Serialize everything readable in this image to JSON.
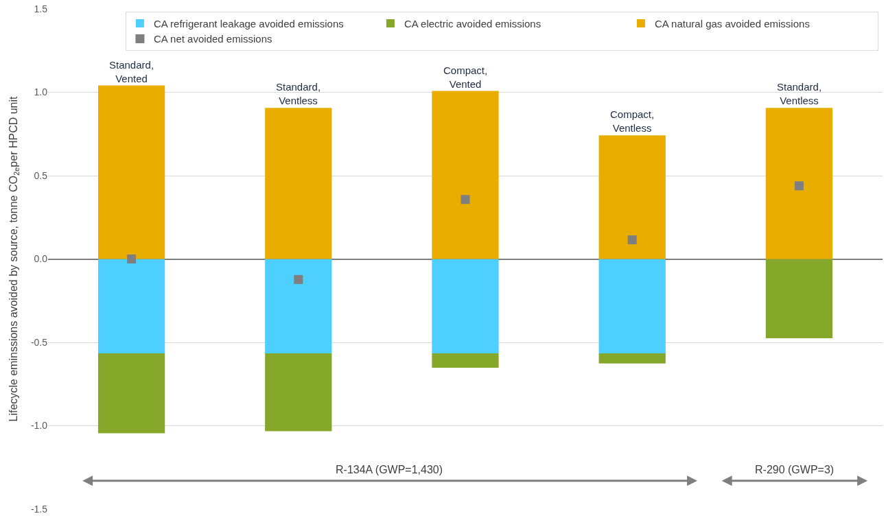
{
  "chart_data": {
    "type": "bar",
    "stacked": true,
    "categories": [
      "Standard,\nVented",
      "Standard,\nVentless",
      "Compact,\nVented",
      "Compact,\nVentless",
      "Standard,\nVentless"
    ],
    "ylabel": "Lifecycle eminssions avoided by source, tonne CO$_{2e}$per HPCD unit",
    "series": [
      {
        "name": "CA refrigerant leakage avoided emissions",
        "color": "#4dcfff",
        "values": [
          -0.566,
          -0.566,
          -0.566,
          -0.566,
          0
        ]
      },
      {
        "name": "CA electric avoided emissions",
        "color": "#86a82a",
        "values": [
          -0.479,
          -0.467,
          -0.086,
          -0.061,
          -0.475
        ]
      },
      {
        "name": "CA natural gas avoided emissions",
        "color": "#e9ad00",
        "values": [
          1.041,
          0.906,
          1.008,
          0.742,
          0.906
        ]
      },
      {
        "name": "CA net avoided emissions",
        "color": "#7f7f7f",
        "type": "scatter",
        "marker": "square",
        "values": [
          0.0,
          -0.123,
          0.357,
          0.115,
          0.439
        ]
      }
    ],
    "ylim": [
      -1.5,
      1.5
    ],
    "yticks": [
      {
        "value": -1.5,
        "label": "-1.5"
      },
      {
        "value": -1,
        "label": "-1.0"
      },
      {
        "value": -0.5,
        "label": "-0.5"
      },
      {
        "value": 0,
        "label": "0.0"
      },
      {
        "value": 0.5,
        "label": "0.5"
      },
      {
        "value": 1,
        "label": "1.0"
      },
      1.5
    ],
    "grid": "y",
    "legend": "top right",
    "tick_labels": "y",
    "annotations": [
      "R-134A (GWP=1,430)",
      "R-290 (GWP=3)"
    ]
  }
}
